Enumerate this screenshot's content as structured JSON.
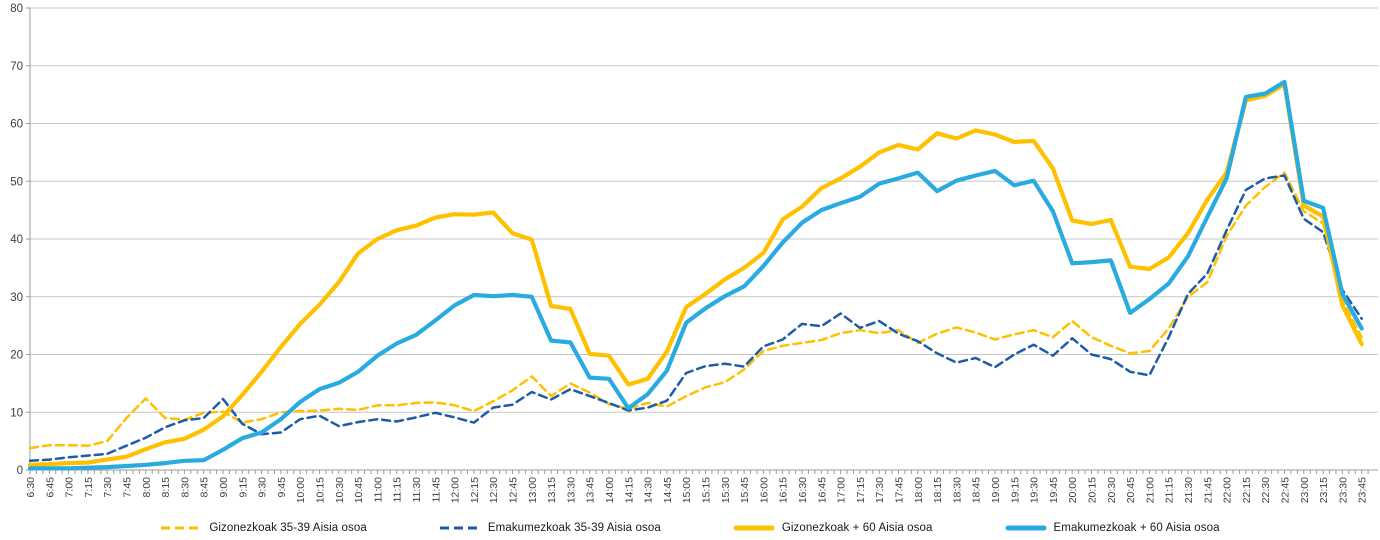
{
  "chart_data": {
    "type": "line",
    "title": "",
    "xlabel": "",
    "ylabel": "",
    "ylim": [
      0,
      80
    ],
    "y_ticks": [
      0,
      10,
      20,
      30,
      40,
      50,
      60,
      70,
      80
    ],
    "grid": true,
    "legend_position": "bottom",
    "categories": [
      "6:30",
      "6:45",
      "7:00",
      "7:15",
      "7:30",
      "7:45",
      "8:00",
      "8:15",
      "8:30",
      "8:45",
      "9:00",
      "9:15",
      "9:30",
      "9:45",
      "10:00",
      "10:15",
      "10:30",
      "10:45",
      "11:00",
      "11:15",
      "11:30",
      "11:45",
      "12:00",
      "12:15",
      "12:30",
      "12:45",
      "13:00",
      "13:15",
      "13:30",
      "13:45",
      "14:00",
      "14:15",
      "14:30",
      "14:45",
      "15:00",
      "15:15",
      "15:30",
      "15:45",
      "16:00",
      "16:15",
      "16:30",
      "16:45",
      "17:00",
      "17:15",
      "17:30",
      "17:45",
      "18:00",
      "18:15",
      "18:30",
      "18:45",
      "19:00",
      "19:15",
      "19:30",
      "19:45",
      "20:00",
      "20:15",
      "20:30",
      "20:45",
      "21:00",
      "21:15",
      "21:30",
      "21:45",
      "22:00",
      "22:15",
      "22:30",
      "22:45",
      "23:00",
      "23:15",
      "23:30",
      "23:45"
    ],
    "series": [
      {
        "name": "Gizonezkoak 35-39 Aisia osoa",
        "color": "#FFC000",
        "style": "dashed",
        "width": 2.5,
        "values": [
          3.8,
          4.3,
          4.3,
          4.2,
          5.0,
          9.0,
          12.4,
          9.0,
          8.7,
          9.9,
          10.1,
          8.2,
          8.8,
          10.0,
          10.2,
          10.3,
          10.6,
          10.4,
          11.2,
          11.2,
          11.6,
          11.7,
          11.2,
          10.2,
          11.9,
          13.8,
          16.2,
          12.8,
          15.0,
          13.4,
          11.4,
          10.6,
          11.6,
          11.0,
          12.8,
          14.3,
          15.2,
          17.4,
          20.6,
          21.5,
          22.0,
          22.5,
          23.7,
          24.2,
          23.7,
          24.2,
          22.0,
          23.6,
          24.7,
          23.8,
          22.6,
          23.5,
          24.2,
          23.0,
          25.8,
          23.0,
          21.5,
          20.2,
          20.6,
          24.5,
          30.0,
          32.5,
          40.5,
          45.8,
          49.0,
          51.5,
          44.8,
          42.7,
          29.4,
          23.0
        ]
      },
      {
        "name": "Emakumezkoak 35-39 Aisia osoa",
        "color": "#1E5CA8",
        "style": "dashed",
        "width": 2.5,
        "values": [
          1.6,
          1.8,
          2.2,
          2.5,
          2.8,
          4.2,
          5.6,
          7.4,
          8.6,
          9.0,
          12.3,
          8.0,
          6.2,
          6.5,
          8.8,
          9.4,
          7.6,
          8.3,
          8.8,
          8.4,
          9.1,
          9.9,
          9.1,
          8.2,
          10.8,
          11.3,
          13.5,
          12.2,
          14.0,
          12.8,
          11.6,
          10.3,
          10.8,
          12.0,
          16.8,
          18.0,
          18.4,
          17.9,
          21.4,
          22.6,
          25.3,
          24.9,
          27.1,
          24.6,
          25.8,
          23.6,
          22.3,
          20.2,
          18.6,
          19.4,
          17.8,
          20.0,
          21.7,
          19.8,
          22.8,
          20.0,
          19.2,
          17.0,
          16.4,
          23.0,
          30.5,
          34.0,
          41.5,
          48.5,
          50.5,
          51.0,
          43.5,
          41.2,
          31.2,
          26.2
        ]
      },
      {
        "name": "Gizonezkoak + 60 Aisia osoa",
        "color": "#FFC000",
        "style": "solid",
        "width": 4.2,
        "values": [
          0.9,
          1.0,
          1.2,
          1.3,
          1.8,
          2.3,
          3.6,
          4.8,
          5.4,
          7.0,
          9.3,
          13.0,
          17.0,
          21.3,
          25.3,
          28.6,
          32.5,
          37.5,
          40.0,
          41.5,
          42.3,
          43.7,
          44.3,
          44.2,
          44.6,
          41.0,
          39.9,
          28.4,
          27.9,
          20.1,
          19.8,
          14.8,
          15.8,
          20.5,
          28.2,
          30.5,
          33.0,
          35.0,
          37.6,
          43.4,
          45.6,
          48.8,
          50.5,
          52.5,
          55.0,
          56.3,
          55.5,
          58.3,
          57.4,
          58.8,
          58.1,
          56.8,
          57.0,
          52.2,
          43.2,
          42.6,
          43.3,
          35.2,
          34.8,
          36.8,
          41.0,
          46.8,
          51.5,
          64.0,
          64.8,
          66.8,
          45.8,
          43.9,
          28.5,
          21.8
        ]
      },
      {
        "name": "Emakumezkoak + 60 Aisia osoa",
        "color": "#29ABE2",
        "style": "solid",
        "width": 4.2,
        "values": [
          0.3,
          0.3,
          0.3,
          0.4,
          0.5,
          0.7,
          0.9,
          1.2,
          1.6,
          1.7,
          3.5,
          5.5,
          6.5,
          8.8,
          11.8,
          14.0,
          15.1,
          17.0,
          19.8,
          21.9,
          23.4,
          25.9,
          28.5,
          30.3,
          30.1,
          30.3,
          30.0,
          22.4,
          22.1,
          16.0,
          15.8,
          10.7,
          13.1,
          17.2,
          25.5,
          28.0,
          30.1,
          31.8,
          35.3,
          39.4,
          42.8,
          45.0,
          46.2,
          47.3,
          49.6,
          50.5,
          51.5,
          48.3,
          50.1,
          51.0,
          51.8,
          49.3,
          50.1,
          44.8,
          35.8,
          36.0,
          36.3,
          27.2,
          29.6,
          32.3,
          37.0,
          43.8,
          50.5,
          64.6,
          65.2,
          67.2,
          46.6,
          45.4,
          30.5,
          24.5
        ]
      }
    ],
    "colors": {
      "gridline": "#C6C6C6",
      "axis": "#9B9B9B",
      "tick": "#9B9B9B",
      "label": "#3F3F3F"
    }
  }
}
